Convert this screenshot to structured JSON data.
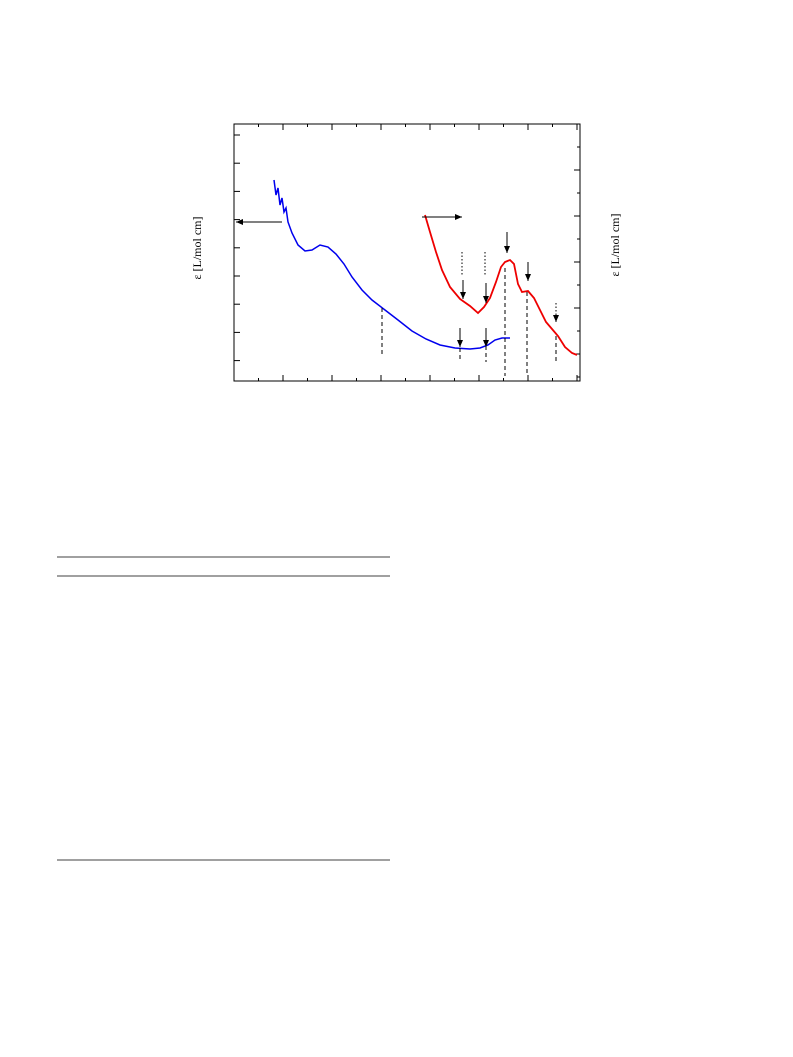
{
  "figure": {
    "y_label_left": "ε [L/mol cm]",
    "y_label_right": "ε [L/mol cm]"
  }
}
